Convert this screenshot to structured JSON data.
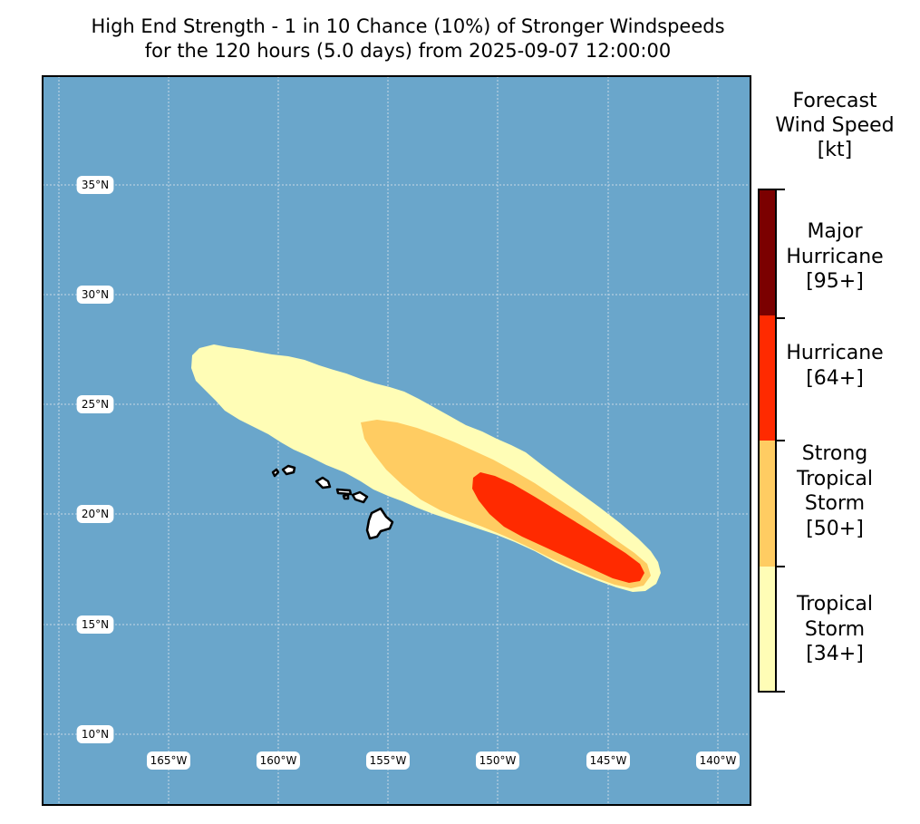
{
  "title": {
    "line1": "High End Strength - 1 in 10 Chance (10%) of Stronger Windspeeds",
    "line2": "for the 120 hours (5.0 days) from 2025-09-07 12:00:00"
  },
  "map": {
    "ocean_color": "#6aa6cb",
    "grid_color": "#c8d8e6",
    "lat_labels": [
      "35°N",
      "30°N",
      "25°N",
      "20°N",
      "15°N",
      "10°N"
    ],
    "lon_labels": [
      "165°W",
      "160°W",
      "155°W",
      "150°W",
      "145°W",
      "140°W"
    ],
    "land_color": "#ffffff",
    "coast_color": "#000000"
  },
  "wind_field": {
    "tropical_storm_color": "#fffdb6",
    "strong_tropical_storm_color": "#ffcc62",
    "hurricane_color": "#ff2a00"
  },
  "colorbar": {
    "title": [
      "Forecast",
      "Wind Speed",
      "[kt]"
    ],
    "categories": [
      {
        "label": [
          "Major",
          "Hurricane",
          "[95+]"
        ],
        "color": "#7b0000"
      },
      {
        "label": [
          "Hurricane",
          "[64+]"
        ],
        "color": "#ff2a00"
      },
      {
        "label": [
          "Strong",
          "Tropical",
          "Storm",
          "[50+]"
        ],
        "color": "#ffcc62"
      },
      {
        "label": [
          "Tropical",
          "Storm",
          "[34+]"
        ],
        "color": "#fffdb6"
      }
    ]
  }
}
